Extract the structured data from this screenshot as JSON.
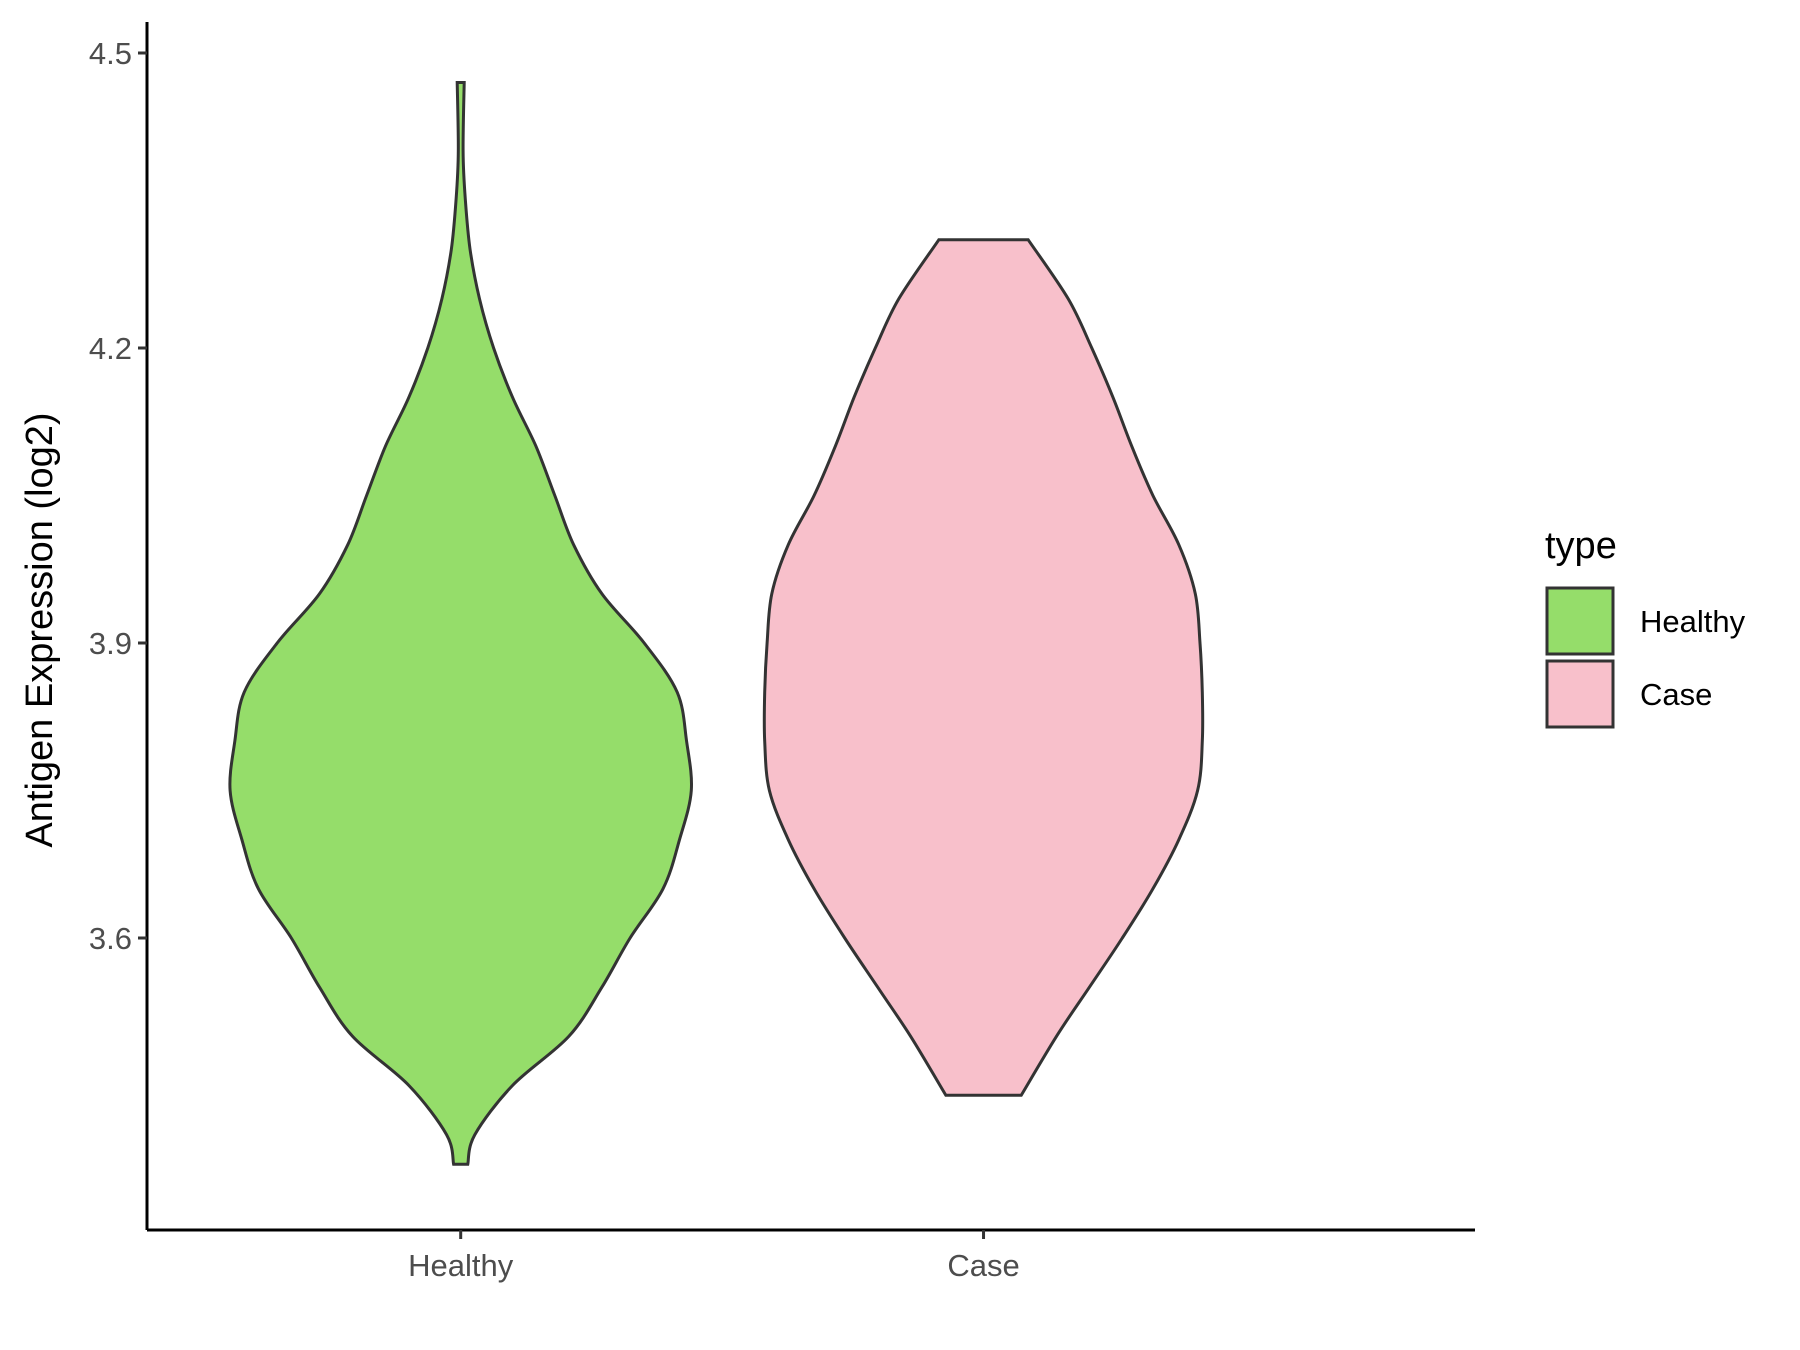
{
  "chart_data": {
    "type": "violin",
    "title": "",
    "xlabel": "",
    "ylabel": "Antigen Expression (log2)",
    "categories": [
      "Healthy",
      "Case"
    ],
    "yticks": [
      "3.6",
      "3.9",
      "4.2",
      "4.5"
    ],
    "ylim": [
      3.33,
      4.53
    ],
    "grid": false,
    "legend": {
      "title": "type",
      "position": "right",
      "items": [
        {
          "label": "Healthy",
          "color": "#95dd6a"
        },
        {
          "label": "Case",
          "color": "#f8c0cb"
        }
      ]
    },
    "series": [
      {
        "name": "Healthy",
        "color": "#95dd6a",
        "min": 3.37,
        "max": 4.47,
        "density": [
          [
            3.37,
            0.03
          ],
          [
            3.4,
            0.06
          ],
          [
            3.45,
            0.22
          ],
          [
            3.5,
            0.46
          ],
          [
            3.55,
            0.6
          ],
          [
            3.6,
            0.72
          ],
          [
            3.65,
            0.86
          ],
          [
            3.7,
            0.93
          ],
          [
            3.75,
            0.98
          ],
          [
            3.8,
            0.96
          ],
          [
            3.85,
            0.92
          ],
          [
            3.9,
            0.78
          ],
          [
            3.95,
            0.6
          ],
          [
            4.0,
            0.48
          ],
          [
            4.05,
            0.4
          ],
          [
            4.1,
            0.32
          ],
          [
            4.15,
            0.22
          ],
          [
            4.2,
            0.14
          ],
          [
            4.25,
            0.08
          ],
          [
            4.3,
            0.04
          ],
          [
            4.35,
            0.02
          ],
          [
            4.4,
            0.01
          ],
          [
            4.47,
            0.015
          ]
        ]
      },
      {
        "name": "Case",
        "color": "#f8c0cb",
        "min": 3.44,
        "max": 4.31,
        "density": [
          [
            3.44,
            0.16
          ],
          [
            3.5,
            0.31
          ],
          [
            3.55,
            0.45
          ],
          [
            3.6,
            0.59
          ],
          [
            3.65,
            0.72
          ],
          [
            3.7,
            0.83
          ],
          [
            3.75,
            0.91
          ],
          [
            3.8,
            0.93
          ],
          [
            3.85,
            0.93
          ],
          [
            3.9,
            0.92
          ],
          [
            3.95,
            0.9
          ],
          [
            4.0,
            0.83
          ],
          [
            4.05,
            0.72
          ],
          [
            4.1,
            0.63
          ],
          [
            4.15,
            0.55
          ],
          [
            4.2,
            0.46
          ],
          [
            4.25,
            0.36
          ],
          [
            4.31,
            0.19
          ]
        ]
      }
    ]
  }
}
